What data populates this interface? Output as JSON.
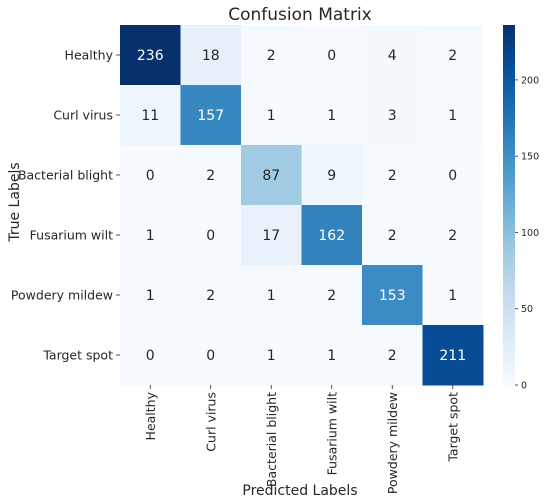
{
  "chart_data": {
    "type": "heatmap",
    "title": "Confusion Matrix",
    "xlabel": "Predicted Labels",
    "ylabel": "True Labels",
    "x_categories": [
      "Healthy",
      "Curl virus",
      "Bacterial blight",
      "Fusarium wilt",
      "Powdery mildew",
      "Target spot"
    ],
    "y_categories": [
      "Healthy",
      "Curl virus",
      "Bacterial blight",
      "Fusarium wilt",
      "Powdery mildew",
      "Target spot"
    ],
    "values": [
      [
        236,
        18,
        2,
        0,
        4,
        2
      ],
      [
        11,
        157,
        1,
        1,
        3,
        1
      ],
      [
        0,
        2,
        87,
        9,
        2,
        0
      ],
      [
        1,
        0,
        17,
        162,
        2,
        2
      ],
      [
        1,
        2,
        1,
        2,
        153,
        1
      ],
      [
        0,
        0,
        1,
        1,
        2,
        211
      ]
    ],
    "colormap": "Blues",
    "color_range": [
      0,
      236
    ],
    "colorbar_ticks": [
      0,
      50,
      100,
      150,
      200
    ],
    "grid": false,
    "legend": "colorbar-right"
  }
}
